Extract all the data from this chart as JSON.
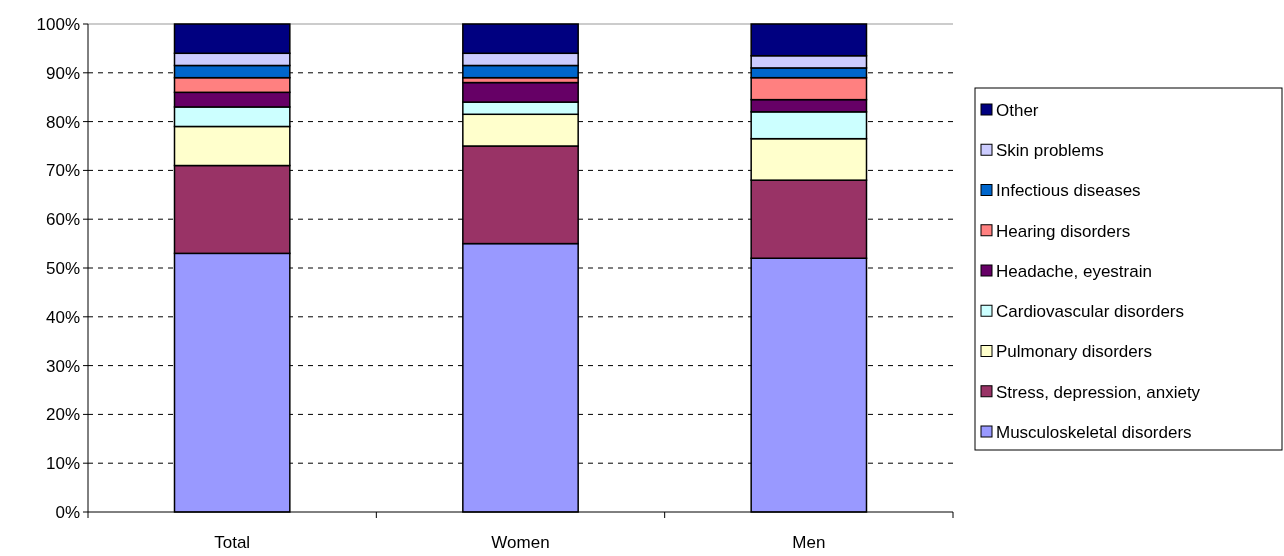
{
  "chart_data": {
    "type": "bar",
    "stacked": true,
    "categories": [
      "Total",
      "Women",
      "Men"
    ],
    "series": [
      {
        "name": "Musculoskeletal disorders",
        "color": "#9999ff",
        "values": [
          53,
          55,
          52
        ]
      },
      {
        "name": "Stress, depression, anxiety",
        "color": "#993366",
        "values": [
          18,
          20,
          16
        ]
      },
      {
        "name": "Pulmonary disorders",
        "color": "#ffffcc",
        "values": [
          8,
          6.5,
          8.5
        ]
      },
      {
        "name": "Cardiovascular disorders",
        "color": "#ccffff",
        "values": [
          4,
          2.5,
          5.5
        ]
      },
      {
        "name": "Headache, eyestrain",
        "color": "#660066",
        "values": [
          3,
          4,
          2.5
        ]
      },
      {
        "name": "Hearing disorders",
        "color": "#ff8080",
        "values": [
          3,
          1,
          4.5
        ]
      },
      {
        "name": "Infectious diseases",
        "color": "#0066cc",
        "values": [
          2.5,
          2.5,
          2
        ]
      },
      {
        "name": "Skin problems",
        "color": "#ccccff",
        "values": [
          2.5,
          2.5,
          2.5
        ]
      },
      {
        "name": "Other",
        "color": "#000080",
        "values": [
          6,
          6,
          6.5
        ]
      }
    ],
    "ylim": [
      0,
      100
    ],
    "yticks": [
      {
        "value": 0,
        "label": "0%"
      },
      {
        "value": 10,
        "label": "10%"
      },
      {
        "value": 20,
        "label": "20%"
      },
      {
        "value": 30,
        "label": "30%"
      },
      {
        "value": 40,
        "label": "40%"
      },
      {
        "value": 50,
        "label": "50%"
      },
      {
        "value": 60,
        "label": "60%"
      },
      {
        "value": 70,
        "label": "70%"
      },
      {
        "value": 80,
        "label": "80%"
      },
      {
        "value": 90,
        "label": "90%"
      },
      {
        "value": 100,
        "label": "100%"
      }
    ],
    "grid": "y",
    "legend": "right"
  }
}
